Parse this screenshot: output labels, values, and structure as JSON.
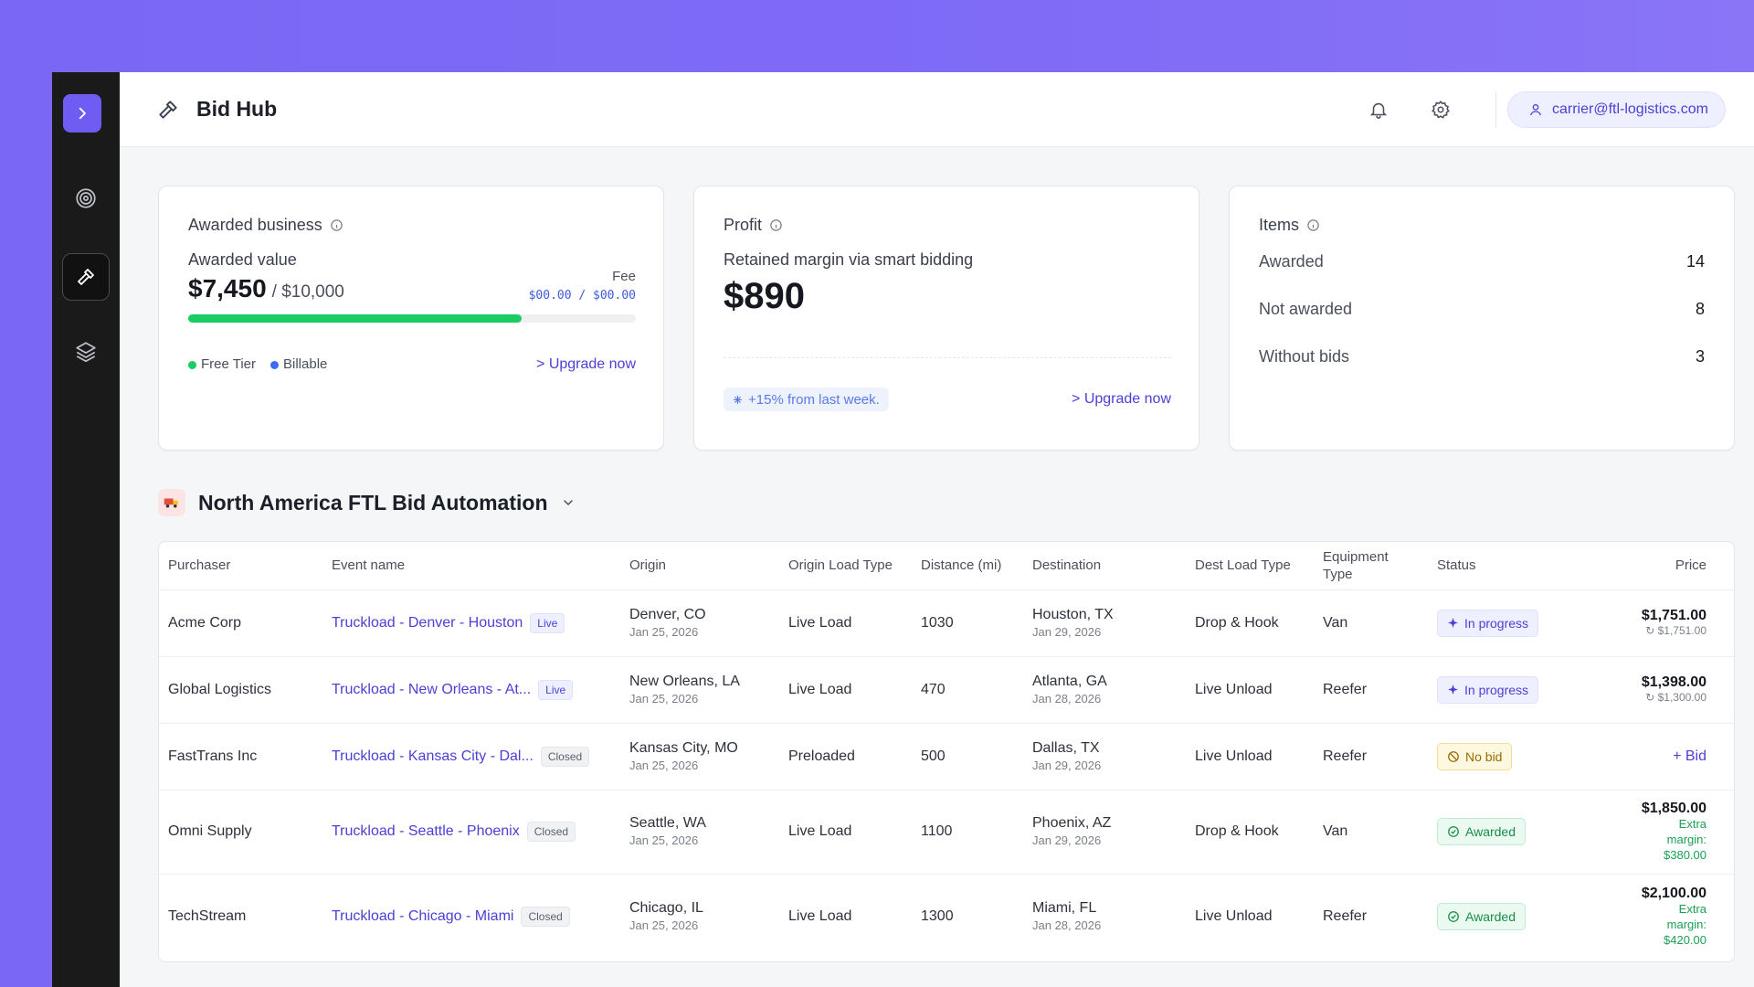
{
  "header": {
    "title": "Bid Hub",
    "user_email": "carrier@ftl-logistics.com"
  },
  "icons": {
    "sidebar": [
      "chevron-right-icon",
      "target-icon",
      "hammer-icon",
      "layers-icon"
    ],
    "header": [
      "hammer-icon",
      "bell-icon",
      "gear-icon",
      "user-icon"
    ]
  },
  "cards": {
    "awarded": {
      "heading": "Awarded business",
      "label": "Awarded value",
      "value": "$7,450",
      "of": "/ $10,000",
      "fee_label": "Fee",
      "fee_value": "$00.00 / $00.00",
      "progress_fraction": 0.745,
      "legend": [
        "Free Tier",
        "Billable"
      ],
      "legend_colors": [
        "#19cc63",
        "#3b6ef5"
      ],
      "upgrade": "> Upgrade now"
    },
    "profit": {
      "heading": "Profit",
      "subtitle": "Retained margin via smart bidding",
      "value": "$890",
      "trend": "+15% from last week.",
      "upgrade": "> Upgrade now"
    },
    "items": {
      "heading": "Items",
      "rows": [
        {
          "label": "Awarded",
          "value": "14"
        },
        {
          "label": "Not awarded",
          "value": "8"
        },
        {
          "label": "Without bids",
          "value": "3"
        }
      ]
    }
  },
  "section": {
    "title": "North America FTL Bid Automation"
  },
  "table": {
    "columns": [
      "Purchaser",
      "Event name",
      "Origin",
      "Origin Load Type",
      "Distance (mi)",
      "Destination",
      "Dest Load Type",
      "Equipment Type",
      "Status",
      "Price"
    ],
    "rows": [
      {
        "purchaser": "Acme Corp",
        "event": "Truckload - Denver - Houston",
        "tag": "Live",
        "origin": "Denver, CO",
        "origin_date": "Jan 25, 2026",
        "origin_load": "Live Load",
        "distance": "1030",
        "dest": "Houston, TX",
        "dest_date": "Jan 29, 2026",
        "dest_load": "Drop & Hook",
        "equipment": "Van",
        "status": "In progress",
        "price": "$1,751.00",
        "price_prev": "↻ $1,751.00"
      },
      {
        "purchaser": "Global Logistics",
        "event": "Truckload - New Orleans - At...",
        "tag": "Live",
        "origin": "New Orleans, LA",
        "origin_date": "Jan 25, 2026",
        "origin_load": "Live Load",
        "distance": "470",
        "dest": "Atlanta, GA",
        "dest_date": "Jan 28, 2026",
        "dest_load": "Live Unload",
        "equipment": "Reefer",
        "status": "In progress",
        "price": "$1,398.00",
        "price_prev": "↻ $1,300.00"
      },
      {
        "purchaser": "FastTrans Inc",
        "event": "Truckload - Kansas City - Dal...",
        "tag": "Closed",
        "origin": "Kansas City, MO",
        "origin_date": "Jan 25, 2026",
        "origin_load": "Preloaded",
        "distance": "500",
        "dest": "Dallas, TX",
        "dest_date": "Jan 29, 2026",
        "dest_load": "Live Unload",
        "equipment": "Reefer",
        "status": "No bid",
        "bid_label": "+ Bid"
      },
      {
        "purchaser": "Omni Supply",
        "event": "Truckload - Seattle - Phoenix",
        "tag": "Closed",
        "origin": "Seattle, WA",
        "origin_date": "Jan 25, 2026",
        "origin_load": "Live Load",
        "distance": "1100",
        "dest": "Phoenix, AZ",
        "dest_date": "Jan 29, 2026",
        "dest_load": "Drop & Hook",
        "equipment": "Van",
        "status": "Awarded",
        "price": "$1,850.00",
        "extra_1": "Extra",
        "extra_2": "margin:",
        "extra_3": "$380.00"
      },
      {
        "purchaser": "TechStream",
        "event": "Truckload - Chicago - Miami",
        "tag": "Closed",
        "origin": "Chicago, IL",
        "origin_date": "Jan 25, 2026",
        "origin_load": "Live Load",
        "distance": "1300",
        "dest": "Miami, FL",
        "dest_date": "Jan 28, 2026",
        "dest_load": "Live Unload",
        "equipment": "Reefer",
        "status": "Awarded",
        "price": "$2,100.00",
        "extra_1": "Extra",
        "extra_2": "margin:",
        "extra_3": "$420.00"
      }
    ]
  },
  "colors": {
    "accent": "#4b3fd6",
    "sidebar": "#1a1a1a",
    "progress": "#19cc63",
    "awarded": "#1a8d4a"
  }
}
